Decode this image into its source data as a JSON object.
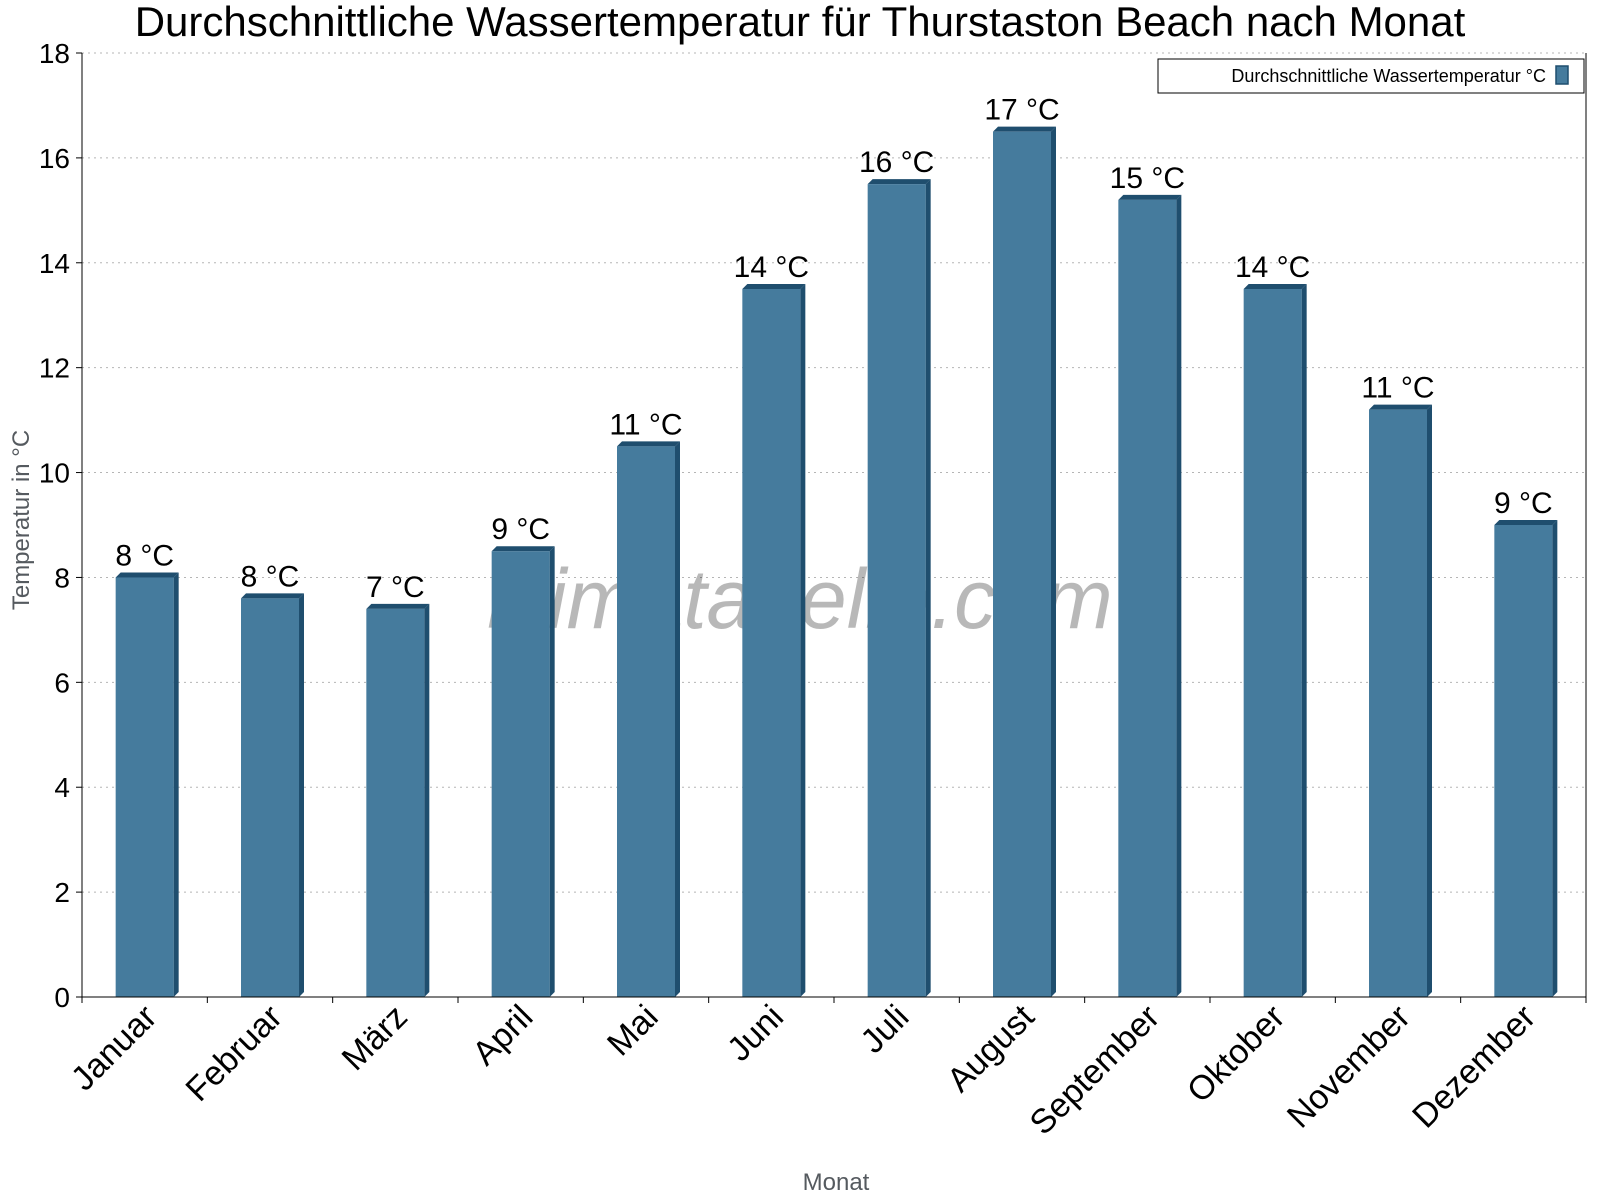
{
  "chart_data": {
    "type": "bar",
    "title": "Durchschnittliche Wassertemperatur für Thurstaston Beach nach Monat",
    "xlabel": "Monat",
    "ylabel": "Temperatur in °C",
    "categories": [
      "Januar",
      "Februar",
      "März",
      "April",
      "Mai",
      "Juni",
      "Juli",
      "August",
      "September",
      "Oktober",
      "November",
      "Dezember"
    ],
    "series": [
      {
        "name": "Durchschnittliche Wassertemperatur °C",
        "values": [
          8.0,
          7.6,
          7.4,
          8.5,
          10.5,
          13.5,
          15.5,
          16.5,
          15.2,
          13.5,
          11.2,
          9.0
        ],
        "labels": [
          "8 °C",
          "8 °C",
          "7 °C",
          "9 °C",
          "11 °C",
          "14 °C",
          "16 °C",
          "17 °C",
          "15 °C",
          "14 °C",
          "11 °C",
          "9 °C"
        ],
        "color": "#457b9d"
      }
    ],
    "ylim": [
      0,
      18
    ],
    "yticks": [
      0,
      2,
      4,
      6,
      8,
      10,
      12,
      14,
      16,
      18
    ],
    "grid": true,
    "legend": "top-right"
  },
  "watermark": "klimatabelle.com"
}
